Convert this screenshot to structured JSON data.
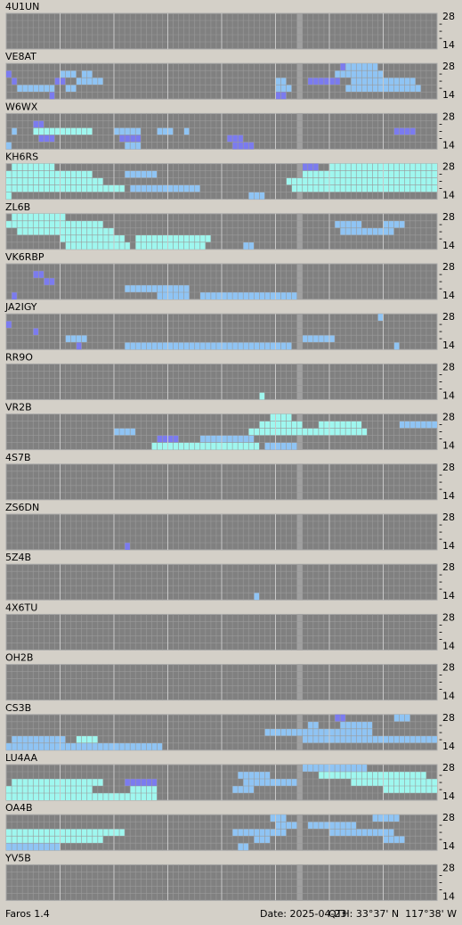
{
  "axis": {
    "top": "28",
    "mid": "-",
    "bottom": "14"
  },
  "stations": [
    {
      "call": "4U1UN",
      "spots": []
    },
    {
      "call": "VE8AT",
      "spots": [
        [
          0,
          62,
          1,
          1
        ],
        [
          0,
          63,
          6,
          2
        ],
        [
          1,
          0,
          1,
          1
        ],
        [
          1,
          10,
          3,
          2
        ],
        [
          1,
          14,
          2,
          2
        ],
        [
          1,
          61,
          9,
          2
        ],
        [
          2,
          1,
          1,
          1
        ],
        [
          2,
          9,
          2,
          1
        ],
        [
          2,
          13,
          5,
          2
        ],
        [
          2,
          50,
          2,
          2
        ],
        [
          2,
          56,
          6,
          1
        ],
        [
          2,
          64,
          12,
          2
        ],
        [
          3,
          2,
          7,
          2
        ],
        [
          3,
          11,
          2,
          2
        ],
        [
          3,
          50,
          3,
          2
        ],
        [
          3,
          63,
          14,
          2
        ],
        [
          4,
          8,
          1,
          1
        ],
        [
          4,
          50,
          2,
          1
        ]
      ]
    },
    {
      "call": "W6WX",
      "spots": [
        [
          1,
          5,
          2,
          1
        ],
        [
          2,
          1,
          1,
          2
        ],
        [
          2,
          5,
          11,
          3
        ],
        [
          2,
          20,
          5,
          2
        ],
        [
          2,
          28,
          3,
          2
        ],
        [
          2,
          33,
          1,
          2
        ],
        [
          2,
          72,
          4,
          1
        ],
        [
          3,
          6,
          3,
          1
        ],
        [
          3,
          21,
          4,
          1
        ],
        [
          3,
          41,
          3,
          1
        ],
        [
          4,
          0,
          1,
          2
        ],
        [
          4,
          22,
          3,
          2
        ],
        [
          4,
          42,
          4,
          1
        ]
      ]
    },
    {
      "call": "KH6RS",
      "spots": [
        [
          0,
          1,
          8,
          3
        ],
        [
          0,
          55,
          3,
          1
        ],
        [
          0,
          60,
          20,
          3
        ],
        [
          1,
          0,
          16,
          3
        ],
        [
          1,
          22,
          6,
          2
        ],
        [
          1,
          55,
          25,
          3
        ],
        [
          2,
          0,
          18,
          3
        ],
        [
          2,
          52,
          28,
          3
        ],
        [
          3,
          0,
          22,
          3
        ],
        [
          3,
          23,
          5,
          2
        ],
        [
          3,
          28,
          8,
          2
        ],
        [
          3,
          53,
          27,
          3
        ],
        [
          4,
          0,
          1,
          3
        ],
        [
          4,
          45,
          3,
          2
        ]
      ]
    },
    {
      "call": "ZL6B",
      "spots": [
        [
          0,
          1,
          10,
          3
        ],
        [
          1,
          0,
          18,
          3
        ],
        [
          1,
          61,
          5,
          2
        ],
        [
          1,
          70,
          4,
          2
        ],
        [
          2,
          2,
          18,
          3
        ],
        [
          2,
          62,
          10,
          2
        ],
        [
          3,
          10,
          12,
          3
        ],
        [
          3,
          24,
          14,
          3
        ],
        [
          4,
          11,
          12,
          3
        ],
        [
          4,
          24,
          13,
          3
        ],
        [
          4,
          44,
          2,
          2
        ]
      ]
    },
    {
      "call": "VK6RBP",
      "spots": [
        [
          1,
          5,
          2,
          1
        ],
        [
          2,
          7,
          2,
          1
        ],
        [
          3,
          22,
          12,
          2
        ],
        [
          4,
          1,
          1,
          1
        ],
        [
          4,
          28,
          6,
          2
        ],
        [
          4,
          36,
          18,
          2
        ]
      ]
    },
    {
      "call": "JA2IGY",
      "spots": [
        [
          0,
          69,
          1,
          2
        ],
        [
          1,
          0,
          1,
          1
        ],
        [
          2,
          5,
          1,
          1
        ],
        [
          3,
          11,
          4,
          2
        ],
        [
          3,
          55,
          6,
          2
        ],
        [
          4,
          13,
          1,
          1
        ],
        [
          4,
          22,
          31,
          2
        ],
        [
          4,
          72,
          1,
          2
        ]
      ]
    },
    {
      "call": "RR9O",
      "spots": [
        [
          4,
          47,
          1,
          3
        ]
      ]
    },
    {
      "call": "VR2B",
      "spots": [
        [
          0,
          49,
          4,
          3
        ],
        [
          1,
          47,
          8,
          3
        ],
        [
          1,
          58,
          8,
          3
        ],
        [
          1,
          73,
          7,
          2
        ],
        [
          2,
          20,
          4,
          2
        ],
        [
          2,
          45,
          22,
          3
        ],
        [
          3,
          28,
          4,
          1
        ],
        [
          3,
          36,
          10,
          2
        ],
        [
          4,
          27,
          20,
          3
        ],
        [
          4,
          48,
          6,
          2
        ]
      ]
    },
    {
      "call": "4S7B",
      "spots": []
    },
    {
      "call": "ZS6DN",
      "spots": [
        [
          4,
          22,
          1,
          1
        ]
      ]
    },
    {
      "call": "5Z4B",
      "spots": [
        [
          4,
          46,
          1,
          2
        ]
      ]
    },
    {
      "call": "4X6TU",
      "spots": []
    },
    {
      "call": "OH2B",
      "spots": []
    },
    {
      "call": "CS3B",
      "spots": [
        [
          0,
          61,
          2,
          1
        ],
        [
          0,
          72,
          3,
          2
        ],
        [
          1,
          56,
          2,
          2
        ],
        [
          1,
          62,
          6,
          2
        ],
        [
          2,
          48,
          20,
          2
        ],
        [
          3,
          1,
          10,
          2
        ],
        [
          3,
          13,
          4,
          3
        ],
        [
          3,
          55,
          25,
          2
        ],
        [
          4,
          0,
          29,
          2
        ]
      ]
    },
    {
      "call": "LU4AA",
      "spots": [
        [
          0,
          55,
          12,
          2
        ],
        [
          1,
          43,
          6,
          2
        ],
        [
          1,
          58,
          20,
          3
        ],
        [
          2,
          1,
          17,
          3
        ],
        [
          2,
          22,
          6,
          1
        ],
        [
          2,
          44,
          10,
          2
        ],
        [
          2,
          64,
          16,
          3
        ],
        [
          3,
          0,
          16,
          3
        ],
        [
          3,
          23,
          5,
          3
        ],
        [
          3,
          42,
          4,
          2
        ],
        [
          3,
          70,
          10,
          3
        ],
        [
          4,
          0,
          28,
          3
        ]
      ]
    },
    {
      "call": "OA4B",
      "spots": [
        [
          0,
          49,
          3,
          2
        ],
        [
          0,
          68,
          5,
          2
        ],
        [
          1,
          50,
          4,
          2
        ],
        [
          1,
          56,
          9,
          2
        ],
        [
          2,
          0,
          22,
          3
        ],
        [
          2,
          42,
          10,
          2
        ],
        [
          2,
          60,
          12,
          2
        ],
        [
          3,
          0,
          18,
          3
        ],
        [
          3,
          46,
          3,
          2
        ],
        [
          3,
          70,
          4,
          2
        ],
        [
          4,
          0,
          10,
          2
        ],
        [
          4,
          43,
          2,
          2
        ]
      ]
    },
    {
      "call": "YV5B",
      "spots": []
    }
  ],
  "footer": {
    "app": "Faros 1.4",
    "date": "Date: 2025-04-23",
    "qth": "QTH: 33°37' N  117°38' W"
  }
}
